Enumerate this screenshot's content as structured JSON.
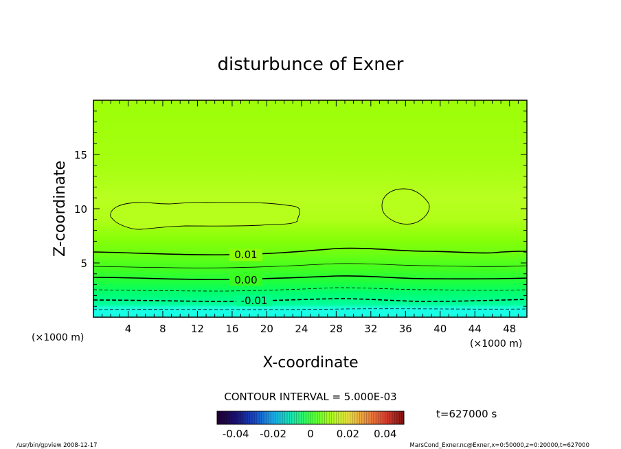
{
  "chart_data": {
    "type": "contour",
    "title": "disturbunce of Exner",
    "xlabel": "X-coordinate",
    "ylabel": "Z-coordinate",
    "x_unit": "(×1000 m)",
    "z_unit": "(×1000 m)",
    "xlim": [
      0,
      50
    ],
    "ylim": [
      0,
      20
    ],
    "x_ticks": [
      4,
      8,
      12,
      16,
      20,
      24,
      28,
      32,
      36,
      40,
      44,
      48
    ],
    "y_ticks": [
      5,
      10,
      15
    ],
    "contour_interval": "CONTOUR INTERVAL = 5.000E-03",
    "contour_labels": [
      {
        "value": "0.01",
        "x": 17.5,
        "z": 5.8
      },
      {
        "value": "0.00",
        "x": 17.5,
        "z": 3.6
      },
      {
        "value": "-0.01",
        "x": 18.5,
        "z": 1.6
      }
    ],
    "colorbar": {
      "ticks": [
        "-0.04",
        "-0.02",
        "0",
        "0.02",
        "0.04"
      ],
      "min": -0.05,
      "max": 0.05
    },
    "time_label": "t=627000 s",
    "grid": false
  },
  "footer": {
    "left": "/usr/bin/gpview   2008-12-17",
    "right": "MarsCond_Exner.nc@Exner,x=0:50000,z=0:20000,t=627000"
  }
}
